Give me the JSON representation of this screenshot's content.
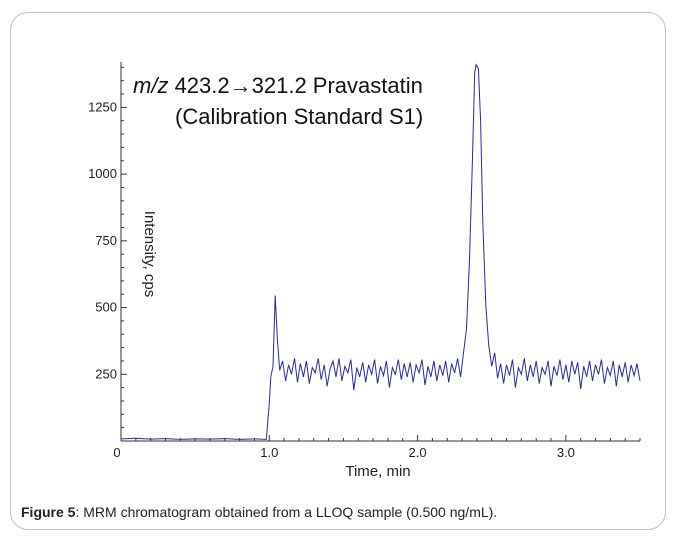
{
  "chart_data": {
    "type": "line",
    "annotation": {
      "line1_italic": "m/z",
      "line1_rest": " 423.2→321.2 Pravastatin",
      "line2": "(Calibration Standard S1)"
    },
    "xlabel": "Time, min",
    "ylabel": "Intensity, cps",
    "xlim": [
      0,
      3.5
    ],
    "ylim": [
      0,
      1420
    ],
    "x_ticks": [
      {
        "value": 0,
        "label": "0"
      },
      {
        "value": 1.0,
        "label": "1.0"
      },
      {
        "value": 2.0,
        "label": "2.0"
      },
      {
        "value": 3.0,
        "label": "3.0"
      }
    ],
    "y_ticks": [
      {
        "value": 250,
        "label": "250"
      },
      {
        "value": 500,
        "label": "500"
      },
      {
        "value": 750,
        "label": "750"
      },
      {
        "value": 1000,
        "label": "1000"
      },
      {
        "value": 1250,
        "label": "1250"
      }
    ],
    "line_color": "#2b2b8c",
    "series": [
      {
        "points": [
          [
            0.0,
            8
          ],
          [
            0.1,
            10
          ],
          [
            0.2,
            7
          ],
          [
            0.3,
            9
          ],
          [
            0.4,
            6
          ],
          [
            0.5,
            8
          ],
          [
            0.6,
            7
          ],
          [
            0.7,
            9
          ],
          [
            0.8,
            6
          ],
          [
            0.9,
            8
          ],
          [
            0.98,
            6
          ],
          [
            1.0,
            140
          ],
          [
            1.01,
            240
          ],
          [
            1.025,
            280
          ],
          [
            1.04,
            545
          ],
          [
            1.055,
            380
          ],
          [
            1.07,
            265
          ],
          [
            1.09,
            300
          ],
          [
            1.11,
            225
          ],
          [
            1.13,
            285
          ],
          [
            1.15,
            250
          ],
          [
            1.17,
            310
          ],
          [
            1.19,
            220
          ],
          [
            1.21,
            290
          ],
          [
            1.23,
            240
          ],
          [
            1.25,
            300
          ],
          [
            1.27,
            215
          ],
          [
            1.29,
            275
          ],
          [
            1.31,
            255
          ],
          [
            1.33,
            310
          ],
          [
            1.35,
            230
          ],
          [
            1.37,
            285
          ],
          [
            1.39,
            205
          ],
          [
            1.41,
            270
          ],
          [
            1.43,
            300
          ],
          [
            1.45,
            240
          ],
          [
            1.47,
            310
          ],
          [
            1.49,
            225
          ],
          [
            1.51,
            280
          ],
          [
            1.53,
            255
          ],
          [
            1.55,
            305
          ],
          [
            1.57,
            190
          ],
          [
            1.59,
            275
          ],
          [
            1.61,
            240
          ],
          [
            1.63,
            295
          ],
          [
            1.65,
            220
          ],
          [
            1.67,
            285
          ],
          [
            1.69,
            250
          ],
          [
            1.71,
            305
          ],
          [
            1.73,
            215
          ],
          [
            1.75,
            280
          ],
          [
            1.77,
            245
          ],
          [
            1.79,
            300
          ],
          [
            1.81,
            200
          ],
          [
            1.83,
            275
          ],
          [
            1.85,
            250
          ],
          [
            1.87,
            305
          ],
          [
            1.89,
            230
          ],
          [
            1.91,
            290
          ],
          [
            1.93,
            240
          ],
          [
            1.95,
            295
          ],
          [
            1.97,
            220
          ],
          [
            1.99,
            285
          ],
          [
            2.01,
            255
          ],
          [
            2.03,
            305
          ],
          [
            2.05,
            210
          ],
          [
            2.07,
            280
          ],
          [
            2.09,
            240
          ],
          [
            2.11,
            300
          ],
          [
            2.13,
            225
          ],
          [
            2.15,
            285
          ],
          [
            2.17,
            245
          ],
          [
            2.19,
            300
          ],
          [
            2.21,
            220
          ],
          [
            2.23,
            290
          ],
          [
            2.25,
            255
          ],
          [
            2.27,
            310
          ],
          [
            2.29,
            240
          ],
          [
            2.31,
            330
          ],
          [
            2.33,
            420
          ],
          [
            2.35,
            680
          ],
          [
            2.37,
            1050
          ],
          [
            2.385,
            1380
          ],
          [
            2.395,
            1410
          ],
          [
            2.41,
            1395
          ],
          [
            2.425,
            1200
          ],
          [
            2.44,
            820
          ],
          [
            2.46,
            510
          ],
          [
            2.48,
            360
          ],
          [
            2.5,
            280
          ],
          [
            2.52,
            330
          ],
          [
            2.54,
            235
          ],
          [
            2.56,
            290
          ],
          [
            2.58,
            215
          ],
          [
            2.6,
            285
          ],
          [
            2.62,
            245
          ],
          [
            2.64,
            305
          ],
          [
            2.66,
            200
          ],
          [
            2.68,
            275
          ],
          [
            2.7,
            250
          ],
          [
            2.72,
            310
          ],
          [
            2.74,
            225
          ],
          [
            2.76,
            285
          ],
          [
            2.78,
            240
          ],
          [
            2.8,
            300
          ],
          [
            2.82,
            215
          ],
          [
            2.84,
            275
          ],
          [
            2.86,
            250
          ],
          [
            2.88,
            300
          ],
          [
            2.9,
            205
          ],
          [
            2.92,
            280
          ],
          [
            2.94,
            245
          ],
          [
            2.96,
            305
          ],
          [
            2.98,
            230
          ],
          [
            3.0,
            285
          ],
          [
            3.02,
            220
          ],
          [
            3.04,
            300
          ],
          [
            3.06,
            250
          ],
          [
            3.08,
            295
          ],
          [
            3.1,
            195
          ],
          [
            3.12,
            280
          ],
          [
            3.14,
            240
          ],
          [
            3.16,
            300
          ],
          [
            3.18,
            225
          ],
          [
            3.2,
            285
          ],
          [
            3.22,
            250
          ],
          [
            3.24,
            305
          ],
          [
            3.26,
            215
          ],
          [
            3.28,
            275
          ],
          [
            3.3,
            245
          ],
          [
            3.32,
            300
          ],
          [
            3.34,
            205
          ],
          [
            3.36,
            285
          ],
          [
            3.38,
            240
          ],
          [
            3.4,
            295
          ],
          [
            3.42,
            220
          ],
          [
            3.44,
            285
          ],
          [
            3.46,
            245
          ],
          [
            3.48,
            290
          ],
          [
            3.5,
            225
          ]
        ]
      }
    ]
  },
  "caption": {
    "label": "Figure 5",
    "text": ": MRM chromatogram obtained from a LLOQ sample (0.500 ng/mL)."
  }
}
